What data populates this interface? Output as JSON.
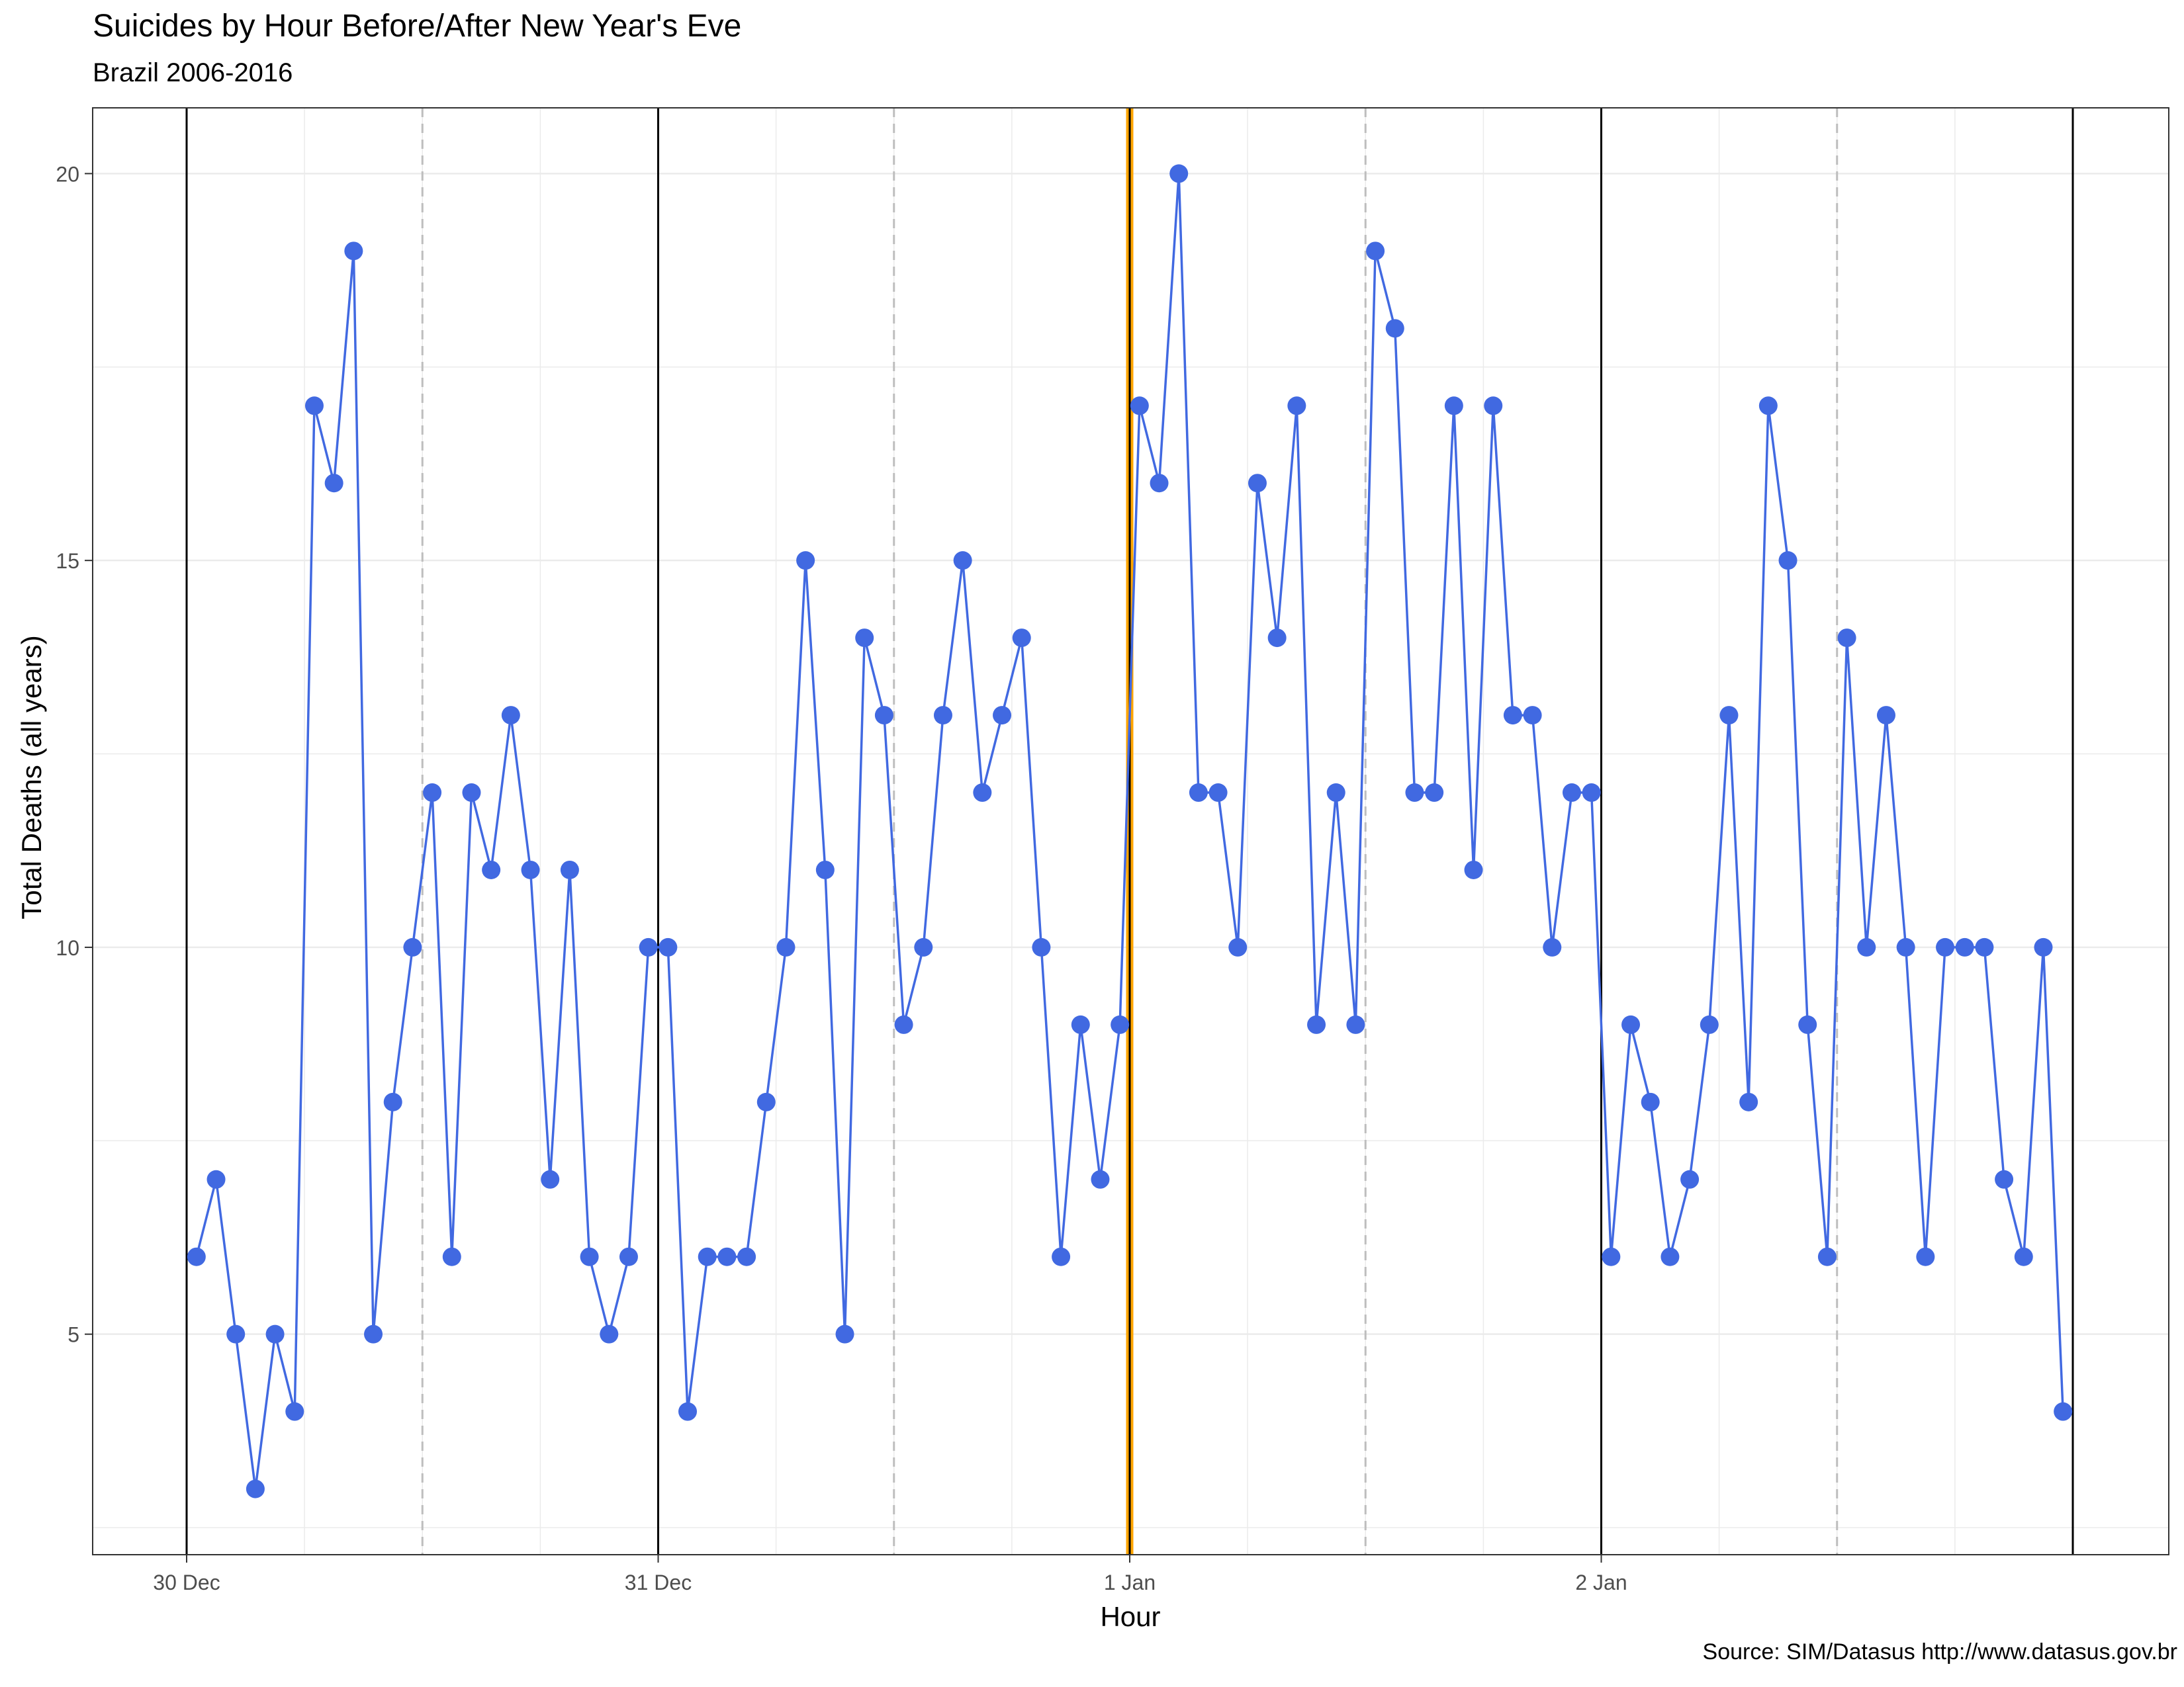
{
  "chart_data": {
    "type": "line",
    "title": "Suicides by Hour Before/After New Year's Eve",
    "subtitle": "Brazil 2006-2016",
    "xlabel": "Hour",
    "ylabel": "Total Deaths (all years)",
    "caption": "Source: SIM/Datasus http://www.datasus.gov.br",
    "x_ticks": [
      "30 Dec",
      "31 Dec",
      "1 Jan",
      "2 Jan"
    ],
    "y_ticks": [
      5,
      10,
      15,
      20
    ],
    "ylim": [
      2.15,
      20.85
    ],
    "x_range_hours": [
      0,
      96
    ],
    "x_unit": "hours from 30 Dec 00:00",
    "day_boundaries": [
      "30 Dec",
      "31 Dec",
      "1 Jan",
      "2 Jan",
      "3 Jan"
    ],
    "midday_lines": [
      "30 Dec 12:00",
      "31 Dec 12:00",
      "1 Jan 12:00",
      "2 Jan 12:00"
    ],
    "highlight": "1 Jan 00:00",
    "colors": {
      "series": "#4169E1",
      "highlight": "#FFA500",
      "midday": "#BEBEBE",
      "boundary": "#000000"
    },
    "grid": true,
    "series": [
      {
        "values": [
          6,
          7,
          5,
          3,
          5,
          4,
          17,
          16,
          19,
          5,
          8,
          10,
          12,
          6,
          12,
          11,
          13,
          11,
          7,
          11,
          6,
          5,
          6,
          10,
          10,
          4,
          6,
          6,
          6,
          8,
          10,
          15,
          11,
          5,
          14,
          13,
          9,
          10,
          13,
          15,
          12,
          13,
          14,
          10,
          6,
          9,
          7,
          9,
          17,
          16,
          20,
          12,
          12,
          10,
          16,
          14,
          17,
          9,
          12,
          9,
          19,
          18,
          12,
          12,
          17,
          11,
          17,
          13,
          13,
          10,
          12,
          12,
          6,
          9,
          8,
          6,
          7,
          9,
          13,
          8,
          17,
          15,
          9,
          6,
          14,
          10,
          13,
          10,
          6,
          10,
          10,
          10,
          7,
          6,
          10,
          4
        ]
      }
    ]
  }
}
